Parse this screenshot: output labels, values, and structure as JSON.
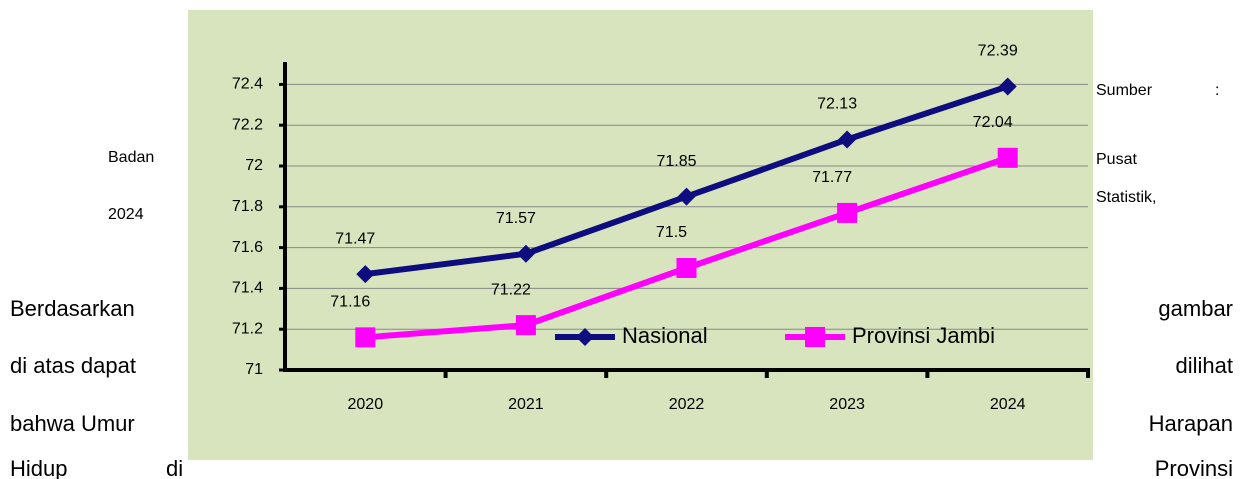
{
  "chart_data": {
    "type": "line",
    "categories": [
      "2020",
      "2021",
      "2022",
      "2023",
      "2024"
    ],
    "series": [
      {
        "name": "Nasional",
        "color": "#0d0d80",
        "values": [
          71.47,
          71.57,
          71.85,
          72.13,
          72.39
        ]
      },
      {
        "name": "Provinsi Jambi",
        "color": "#ff00ff",
        "values": [
          71.16,
          71.22,
          71.5,
          71.77,
          72.04
        ]
      }
    ],
    "ylim": [
      71,
      72.5
    ],
    "yticks": [
      71,
      71.2,
      71.4,
      71.6,
      71.8,
      72,
      72.2,
      72.4
    ],
    "grid": true,
    "legend": "lower right"
  },
  "document": {
    "side_left": [
      "Badan",
      "2024"
    ],
    "side_right": [
      "Sumber",
      ":",
      "Pusat",
      "Statistik,"
    ],
    "body_left": [
      "Berdasarkan",
      "di atas dapat",
      "bahwa Umur",
      "Hidup",
      "di"
    ],
    "body_right": [
      "gambar",
      "dilihat",
      "Harapan",
      "Provinsi"
    ]
  }
}
